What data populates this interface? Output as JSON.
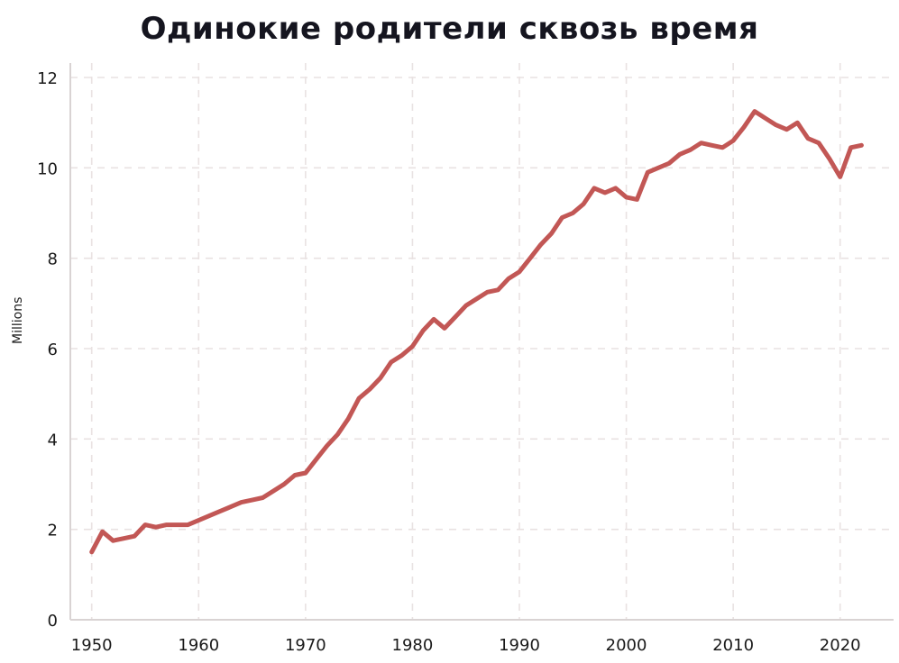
{
  "chart_data": {
    "type": "line",
    "title": "Одинокие родители сквозь время",
    "xlabel": "",
    "ylabel": "Millions",
    "grid": true,
    "legend": "none",
    "line_color": "#c25755",
    "line_width": 5,
    "xlim": [
      1948,
      2025
    ],
    "ylim": [
      0,
      12
    ],
    "x_ticks": [
      1950,
      1960,
      1970,
      1980,
      1990,
      2000,
      2010,
      2020
    ],
    "y_ticks": [
      0,
      2,
      4,
      6,
      8,
      10,
      12
    ],
    "x": [
      1950,
      1951,
      1952,
      1953,
      1954,
      1955,
      1956,
      1957,
      1958,
      1959,
      1960,
      1961,
      1962,
      1963,
      1964,
      1965,
      1966,
      1967,
      1968,
      1969,
      1970,
      1971,
      1972,
      1973,
      1974,
      1975,
      1976,
      1977,
      1978,
      1979,
      1980,
      1981,
      1982,
      1983,
      1984,
      1985,
      1986,
      1987,
      1988,
      1989,
      1990,
      1991,
      1992,
      1993,
      1994,
      1995,
      1996,
      1997,
      1998,
      1999,
      2000,
      2001,
      2002,
      2003,
      2004,
      2005,
      2006,
      2007,
      2008,
      2009,
      2010,
      2011,
      2012,
      2013,
      2014,
      2015,
      2016,
      2017,
      2018,
      2019,
      2020,
      2021,
      2022
    ],
    "series": [
      {
        "name": "Одинокие родители",
        "values": [
          1.5,
          1.95,
          1.75,
          1.8,
          1.85,
          2.1,
          2.05,
          2.1,
          2.1,
          2.1,
          2.2,
          2.3,
          2.4,
          2.5,
          2.6,
          2.65,
          2.7,
          2.85,
          3.0,
          3.2,
          3.25,
          3.55,
          3.85,
          4.1,
          4.45,
          4.9,
          5.1,
          5.35,
          5.7,
          5.85,
          6.05,
          6.4,
          6.65,
          6.45,
          6.7,
          6.95,
          7.1,
          7.25,
          7.3,
          7.55,
          7.7,
          8.0,
          8.3,
          8.55,
          8.9,
          9.0,
          9.2,
          9.55,
          9.45,
          9.55,
          9.35,
          9.3,
          9.9,
          10.0,
          10.1,
          10.3,
          10.4,
          10.55,
          10.5,
          10.45,
          10.6,
          10.9,
          11.25,
          11.1,
          10.95,
          10.85,
          11.0,
          10.65,
          10.55,
          10.2,
          9.8,
          10.45,
          10.5
        ]
      }
    ]
  }
}
